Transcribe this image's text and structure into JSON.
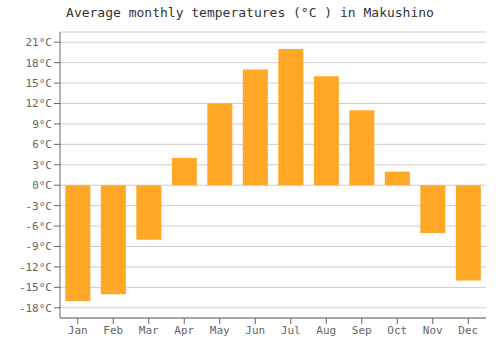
{
  "chart_data": {
    "type": "bar",
    "title": "Average monthly temperatures (°C ) in Makushino",
    "categories": [
      "Jan",
      "Feb",
      "Mar",
      "Apr",
      "May",
      "Jun",
      "Jul",
      "Aug",
      "Sep",
      "Oct",
      "Nov",
      "Dec"
    ],
    "values": [
      -17,
      -16,
      -8,
      4,
      12,
      17,
      20,
      16,
      11,
      2,
      -7,
      -14
    ],
    "color": "#FFA726",
    "ylim": [
      -19.5,
      22.5
    ],
    "yticks": [
      {
        "value": -18,
        "label": "-18°C"
      },
      {
        "value": -15,
        "label": "-15°C"
      },
      {
        "value": -12,
        "label": "-12°C"
      },
      {
        "value": -9,
        "label": "-9°C"
      },
      {
        "value": -6,
        "label": "-6°C"
      },
      {
        "value": -3,
        "label": "-3°C"
      },
      {
        "value": 0,
        "label": "0°C"
      },
      {
        "value": 3,
        "label": "3°C"
      },
      {
        "value": 6,
        "label": "6°C"
      },
      {
        "value": 9,
        "label": "9°C"
      },
      {
        "value": 12,
        "label": "12°C"
      },
      {
        "value": 15,
        "label": "15°C"
      },
      {
        "value": 18,
        "label": "18°C"
      },
      {
        "value": 21,
        "label": "21°C"
      }
    ],
    "grid": true
  }
}
